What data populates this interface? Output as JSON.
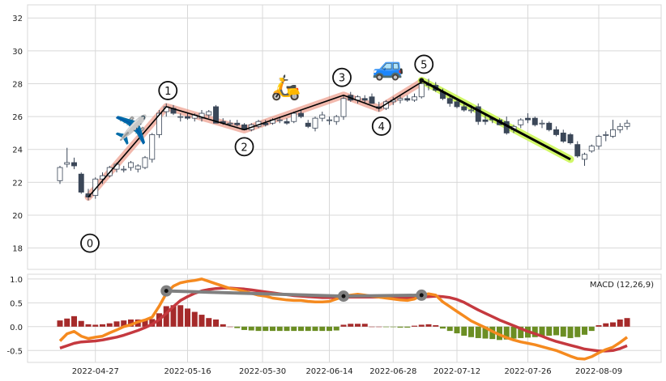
{
  "chart_data": [
    {
      "type": "candlestick",
      "ylim": [
        16.7,
        32.8
      ],
      "yticks": [
        18,
        20,
        22,
        24,
        26,
        28,
        30,
        32
      ],
      "date_ticks": [
        "2022-04-27",
        "2022-05-16",
        "2022-05-30",
        "2022-06-14",
        "2022-06-28",
        "2022-07-12",
        "2022-07-26",
        "2022-08-09"
      ],
      "dates": [
        "2022-04-20",
        "2022-04-21",
        "2022-04-22",
        "2022-04-25",
        "2022-04-26",
        "2022-04-27",
        "2022-04-28",
        "2022-04-29",
        "2022-05-02",
        "2022-05-03",
        "2022-05-04",
        "2022-05-05",
        "2022-05-06",
        "2022-05-09",
        "2022-05-10",
        "2022-05-11",
        "2022-05-12",
        "2022-05-13",
        "2022-05-16",
        "2022-05-17",
        "2022-05-18",
        "2022-05-19",
        "2022-05-20",
        "2022-05-23",
        "2022-05-24",
        "2022-05-25",
        "2022-05-26",
        "2022-05-27",
        "2022-05-31",
        "2022-06-01",
        "2022-06-02",
        "2022-06-03",
        "2022-06-06",
        "2022-06-07",
        "2022-06-08",
        "2022-06-09",
        "2022-06-10",
        "2022-06-13",
        "2022-06-14",
        "2022-06-15",
        "2022-06-16",
        "2022-06-17",
        "2022-06-21",
        "2022-06-22",
        "2022-06-23",
        "2022-06-24",
        "2022-06-27",
        "2022-06-28",
        "2022-06-29",
        "2022-06-30",
        "2022-07-01",
        "2022-07-05",
        "2022-07-06",
        "2022-07-07",
        "2022-07-08",
        "2022-07-11",
        "2022-07-12",
        "2022-07-13",
        "2022-07-14",
        "2022-07-15",
        "2022-07-18",
        "2022-07-19",
        "2022-07-20",
        "2022-07-21",
        "2022-07-22",
        "2022-07-25",
        "2022-07-26",
        "2022-07-27",
        "2022-07-28",
        "2022-07-29",
        "2022-08-01",
        "2022-08-02",
        "2022-08-03",
        "2022-08-04",
        "2022-08-05",
        "2022-08-08",
        "2022-08-09",
        "2022-08-10",
        "2022-08-11",
        "2022-08-12",
        "2022-08-15"
      ],
      "ohlc": [
        [
          22.1,
          23.0,
          21.9,
          22.9
        ],
        [
          23.1,
          24.1,
          22.9,
          23.2
        ],
        [
          23.2,
          23.5,
          22.8,
          23.0
        ],
        [
          22.5,
          22.6,
          21.3,
          21.4
        ],
        [
          21.3,
          21.6,
          20.9,
          21.1
        ],
        [
          21.2,
          22.3,
          21.0,
          22.2
        ],
        [
          22.2,
          22.6,
          21.9,
          22.4
        ],
        [
          22.4,
          23.0,
          22.3,
          22.9
        ],
        [
          22.8,
          23.2,
          22.6,
          23.1
        ],
        [
          22.8,
          23.0,
          22.6,
          22.8
        ],
        [
          22.9,
          23.3,
          22.7,
          23.2
        ],
        [
          22.8,
          23.1,
          22.6,
          23.0
        ],
        [
          22.9,
          23.6,
          22.8,
          23.5
        ],
        [
          23.4,
          25.0,
          23.2,
          24.9
        ],
        [
          24.9,
          26.4,
          24.7,
          26.2
        ],
        [
          26.3,
          26.8,
          26.0,
          26.6
        ],
        [
          26.5,
          26.7,
          26.1,
          26.2
        ],
        [
          26.0,
          26.2,
          25.7,
          26.0
        ],
        [
          26.0,
          26.2,
          25.8,
          25.9
        ],
        [
          25.9,
          26.2,
          25.7,
          26.1
        ],
        [
          25.9,
          26.4,
          25.7,
          26.2
        ],
        [
          26.1,
          26.4,
          25.9,
          26.3
        ],
        [
          26.6,
          26.7,
          25.6,
          25.6
        ],
        [
          25.7,
          25.9,
          25.5,
          25.6
        ],
        [
          25.6,
          25.8,
          25.4,
          25.6
        ],
        [
          25.6,
          25.8,
          25.4,
          25.5
        ],
        [
          25.5,
          25.6,
          25.2,
          25.2
        ],
        [
          25.2,
          25.6,
          25.1,
          25.5
        ],
        [
          25.4,
          25.8,
          25.3,
          25.7
        ],
        [
          25.6,
          25.8,
          25.4,
          25.5
        ],
        [
          25.6,
          25.9,
          25.5,
          25.8
        ],
        [
          25.8,
          26.0,
          25.6,
          25.8
        ],
        [
          25.7,
          25.9,
          25.5,
          25.6
        ],
        [
          25.7,
          26.3,
          25.6,
          26.2
        ],
        [
          26.2,
          26.4,
          25.9,
          26.0
        ],
        [
          25.6,
          25.8,
          25.3,
          25.4
        ],
        [
          25.3,
          26.0,
          25.1,
          25.9
        ],
        [
          25.9,
          26.3,
          25.7,
          26.1
        ],
        [
          25.8,
          26.0,
          25.5,
          25.8
        ],
        [
          25.7,
          26.1,
          25.5,
          26.0
        ],
        [
          26.0,
          27.3,
          25.8,
          27.1
        ],
        [
          27.3,
          27.5,
          26.9,
          27.0
        ],
        [
          27.0,
          27.3,
          26.8,
          27.2
        ],
        [
          27.1,
          27.3,
          26.8,
          27.0
        ],
        [
          27.2,
          27.4,
          26.8,
          26.8
        ],
        [
          26.6,
          26.9,
          26.3,
          26.5
        ],
        [
          26.5,
          27.0,
          26.4,
          26.9
        ],
        [
          26.9,
          27.2,
          26.7,
          27.0
        ],
        [
          27.0,
          27.3,
          26.8,
          27.1
        ],
        [
          27.1,
          27.3,
          26.9,
          27.0
        ],
        [
          27.0,
          27.4,
          26.9,
          27.2
        ],
        [
          27.2,
          28.2,
          27.1,
          28.0
        ],
        [
          28.0,
          28.3,
          27.6,
          27.9
        ],
        [
          27.9,
          28.1,
          27.5,
          27.6
        ],
        [
          27.5,
          27.7,
          27.0,
          27.1
        ],
        [
          27.1,
          27.3,
          26.6,
          26.8
        ],
        [
          26.9,
          27.1,
          26.5,
          26.6
        ],
        [
          26.6,
          26.8,
          26.3,
          26.4
        ],
        [
          26.4,
          26.7,
          26.2,
          26.4
        ],
        [
          26.6,
          26.8,
          25.5,
          25.7
        ],
        [
          25.8,
          26.1,
          25.5,
          25.7
        ],
        [
          25.9,
          26.0,
          25.6,
          25.8
        ],
        [
          25.8,
          25.9,
          25.5,
          25.5
        ],
        [
          25.7,
          26.0,
          24.9,
          25.0
        ],
        [
          25.2,
          25.5,
          25.0,
          25.4
        ],
        [
          25.5,
          25.9,
          25.3,
          25.8
        ],
        [
          25.9,
          26.2,
          25.6,
          25.8
        ],
        [
          25.9,
          26.0,
          25.4,
          25.5
        ],
        [
          25.6,
          25.8,
          25.3,
          25.6
        ],
        [
          25.6,
          25.7,
          25.1,
          25.2
        ],
        [
          25.2,
          25.4,
          24.8,
          24.9
        ],
        [
          25.0,
          25.2,
          24.4,
          24.5
        ],
        [
          24.9,
          25.0,
          24.3,
          24.4
        ],
        [
          24.3,
          24.5,
          23.5,
          23.6
        ],
        [
          23.4,
          23.8,
          23.0,
          23.7
        ],
        [
          23.9,
          24.3,
          23.8,
          24.2
        ],
        [
          24.2,
          24.9,
          24.0,
          24.8
        ],
        [
          24.9,
          25.1,
          24.5,
          24.9
        ],
        [
          24.8,
          25.8,
          24.7,
          25.2
        ],
        [
          25.2,
          25.6,
          25.0,
          25.4
        ],
        [
          25.4,
          25.8,
          25.2,
          25.6
        ]
      ],
      "trend_points": [
        {
          "label": "0",
          "date": "2022-04-26",
          "value": 21.1
        },
        {
          "label": "1",
          "date": "2022-05-11",
          "value": 26.6
        },
        {
          "label": "2",
          "date": "2022-05-26",
          "value": 25.2
        },
        {
          "label": "3",
          "date": "2022-06-16",
          "value": 27.3
        },
        {
          "label": "4",
          "date": "2022-06-24",
          "value": 26.5
        },
        {
          "label": "5",
          "date": "2022-07-05",
          "value": 28.1
        }
      ],
      "projection": {
        "from_date": "2022-07-05",
        "from_value": 28.2,
        "to_date": "2022-08-03",
        "to_value": 23.4
      },
      "icons": [
        "airplane-icon",
        "scooter-icon",
        "car-icon"
      ],
      "colors": {
        "up": "#ffffff",
        "down": "#3b4758",
        "edge": "#3b4758",
        "trend": "#000000",
        "trend_glow": "#e87f6a",
        "projection_glow": "#c6f542"
      }
    },
    {
      "type": "bar",
      "legend": "MACD (12,26,9)",
      "ylim": [
        -0.75,
        1.1
      ],
      "yticks": [
        "-0.5",
        "0.0",
        "0.5",
        "1.0"
      ],
      "histogram": [
        0.13,
        0.17,
        0.22,
        0.12,
        0.05,
        0.04,
        0.05,
        0.07,
        0.11,
        0.13,
        0.15,
        0.15,
        0.15,
        0.16,
        0.28,
        0.43,
        0.45,
        0.45,
        0.38,
        0.31,
        0.25,
        0.18,
        0.15,
        0.05,
        0.0,
        -0.03,
        -0.07,
        -0.08,
        -0.09,
        -0.09,
        -0.09,
        -0.09,
        -0.09,
        -0.09,
        -0.09,
        -0.09,
        -0.09,
        -0.09,
        -0.09,
        -0.08,
        0.04,
        0.06,
        0.06,
        0.06,
        0.0,
        0.0,
        -0.01,
        -0.01,
        -0.02,
        -0.02,
        0.02,
        0.04,
        0.05,
        0.03,
        -0.04,
        -0.09,
        -0.14,
        -0.19,
        -0.22,
        -0.24,
        -0.25,
        -0.26,
        -0.28,
        -0.27,
        -0.25,
        -0.24,
        -0.23,
        -0.22,
        -0.2,
        -0.19,
        -0.18,
        -0.21,
        -0.24,
        -0.22,
        -0.17,
        -0.09,
        0.03,
        0.07,
        0.09,
        0.15,
        0.18
      ],
      "macd": [
        -0.3,
        -0.15,
        -0.1,
        -0.2,
        -0.25,
        -0.22,
        -0.2,
        -0.13,
        -0.07,
        0.0,
        0.04,
        0.1,
        0.14,
        0.2,
        0.43,
        0.7,
        0.85,
        0.92,
        0.95,
        0.97,
        1.0,
        0.95,
        0.9,
        0.85,
        0.8,
        0.78,
        0.74,
        0.7,
        0.66,
        0.64,
        0.6,
        0.58,
        0.56,
        0.55,
        0.55,
        0.53,
        0.52,
        0.52,
        0.53,
        0.58,
        0.63,
        0.66,
        0.68,
        0.66,
        0.64,
        0.62,
        0.6,
        0.58,
        0.56,
        0.55,
        0.58,
        0.66,
        0.69,
        0.66,
        0.52,
        0.42,
        0.32,
        0.22,
        0.12,
        0.05,
        -0.02,
        -0.1,
        -0.17,
        -0.23,
        -0.28,
        -0.32,
        -0.35,
        -0.38,
        -0.42,
        -0.46,
        -0.5,
        -0.56,
        -0.62,
        -0.67,
        -0.68,
        -0.63,
        -0.55,
        -0.48,
        -0.43,
        -0.33,
        -0.22
      ],
      "signal": [
        -0.45,
        -0.4,
        -0.35,
        -0.32,
        -0.31,
        -0.3,
        -0.28,
        -0.25,
        -0.22,
        -0.18,
        -0.13,
        -0.08,
        -0.02,
        0.05,
        0.15,
        0.28,
        0.42,
        0.55,
        0.63,
        0.7,
        0.75,
        0.78,
        0.8,
        0.81,
        0.81,
        0.8,
        0.79,
        0.77,
        0.75,
        0.73,
        0.71,
        0.69,
        0.67,
        0.65,
        0.64,
        0.63,
        0.62,
        0.61,
        0.61,
        0.61,
        0.62,
        0.62,
        0.62,
        0.62,
        0.62,
        0.62,
        0.61,
        0.6,
        0.6,
        0.6,
        0.61,
        0.62,
        0.63,
        0.64,
        0.63,
        0.61,
        0.57,
        0.51,
        0.43,
        0.35,
        0.28,
        0.21,
        0.14,
        0.08,
        0.02,
        -0.04,
        -0.1,
        -0.15,
        -0.2,
        -0.26,
        -0.31,
        -0.35,
        -0.39,
        -0.43,
        -0.47,
        -0.49,
        -0.51,
        -0.51,
        -0.5,
        -0.46,
        -0.4
      ],
      "divergence_markers": [
        {
          "date": "2022-05-11",
          "value": 0.75
        },
        {
          "date": "2022-06-16",
          "value": 0.64
        },
        {
          "date": "2022-07-05",
          "value": 0.66
        }
      ],
      "colors": {
        "macd": "#f58a1f",
        "signal": "#c5393f",
        "hist_pos": "#a52a2a",
        "hist_neg": "#6b8e23",
        "marker": "#808080"
      }
    }
  ]
}
